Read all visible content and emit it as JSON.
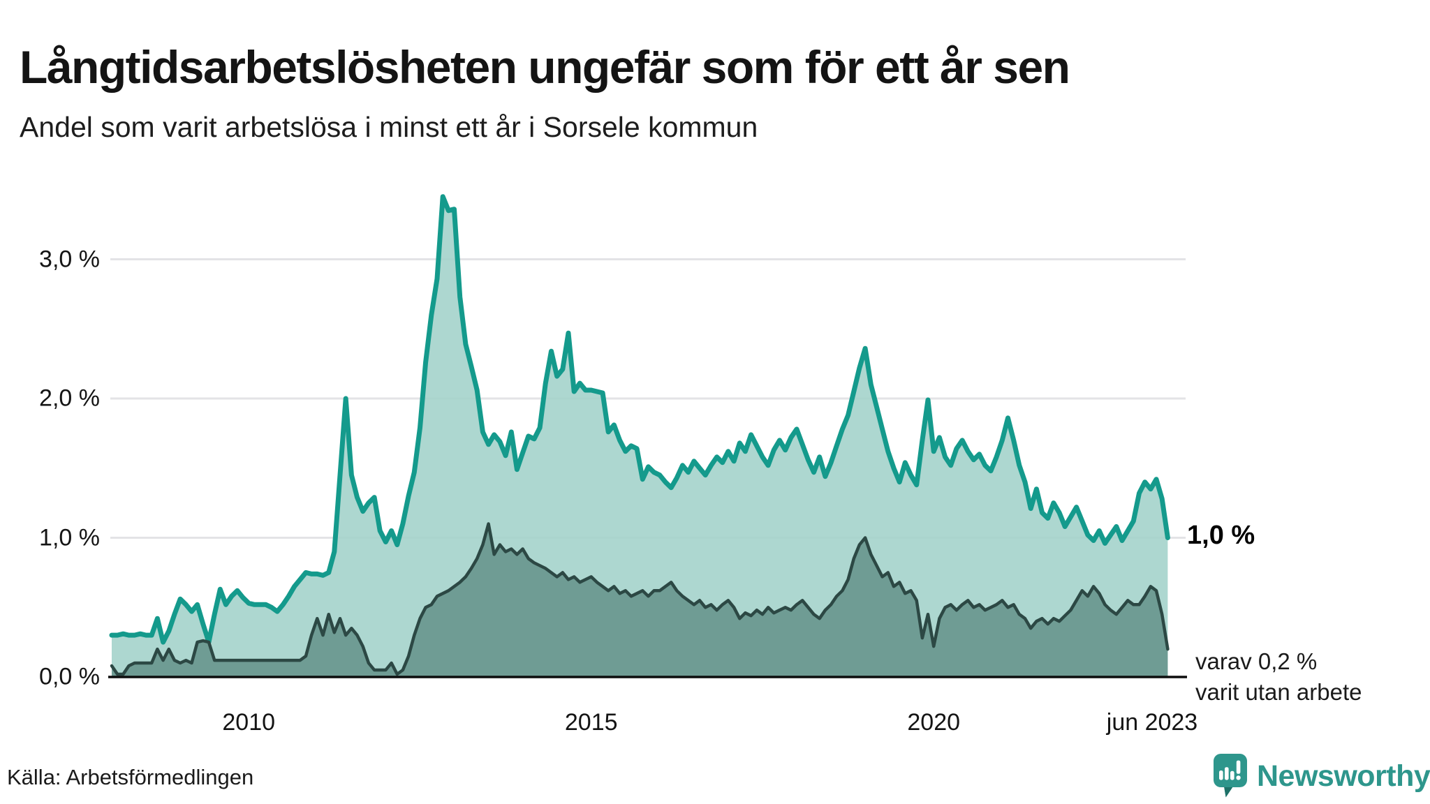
{
  "header": {
    "title": "Långtidsarbetslösheten ungefär som för ett år sen",
    "subtitle": "Andel som varit arbetslösa i minst ett år i Sorsele kommun"
  },
  "chart_data": {
    "type": "area",
    "title": "Långtidsarbetslösheten ungefär som för ett år sen",
    "subtitle": "Andel som varit arbetslösa i minst ett år i Sorsele kommun",
    "frequency": "monthly",
    "x_start": "2008-01",
    "x_end": "2023-06",
    "xlim": [
      2008.0,
      2023.5
    ],
    "ylim": [
      0,
      3.55
    ],
    "grid": "horizontal",
    "legend_position": "none",
    "yticks": [
      {
        "value": 0,
        "label": "0,0 %"
      },
      {
        "value": 1,
        "label": "1,0 %"
      },
      {
        "value": 2,
        "label": "2,0 %"
      },
      {
        "value": 3,
        "label": "3,0 %"
      }
    ],
    "xticks": [
      {
        "value": 2010,
        "label": "2010"
      },
      {
        "value": 2015,
        "label": "2015"
      },
      {
        "value": 2020,
        "label": "2020"
      },
      {
        "value": 2023.417,
        "label": "jun 2023"
      }
    ],
    "series": [
      {
        "id": "total-minst-ett-ar",
        "color": "#149a8c",
        "fill": "#a2d2ca",
        "end_value": 1.0,
        "end_label": "1,0 %",
        "values": [
          0.3,
          0.3,
          0.31,
          0.3,
          0.3,
          0.31,
          0.3,
          0.3,
          0.42,
          0.25,
          0.33,
          0.45,
          0.56,
          0.52,
          0.47,
          0.52,
          0.38,
          0.25,
          0.45,
          0.63,
          0.52,
          0.58,
          0.62,
          0.57,
          0.53,
          0.52,
          0.52,
          0.52,
          0.5,
          0.47,
          0.52,
          0.58,
          0.65,
          0.7,
          0.75,
          0.74,
          0.74,
          0.73,
          0.75,
          0.9,
          1.45,
          2.0,
          1.45,
          1.29,
          1.19,
          1.25,
          1.29,
          1.05,
          0.97,
          1.05,
          0.95,
          1.1,
          1.3,
          1.47,
          1.79,
          2.26,
          2.6,
          2.86,
          3.45,
          3.35,
          3.36,
          2.73,
          2.39,
          2.23,
          2.06,
          1.76,
          1.67,
          1.74,
          1.69,
          1.59,
          1.76,
          1.49,
          1.61,
          1.73,
          1.71,
          1.79,
          2.11,
          2.34,
          2.16,
          2.21,
          2.47,
          2.05,
          2.11,
          2.06,
          2.06,
          2.05,
          2.04,
          1.76,
          1.81,
          1.7,
          1.62,
          1.66,
          1.64,
          1.42,
          1.51,
          1.47,
          1.45,
          1.4,
          1.36,
          1.43,
          1.52,
          1.47,
          1.55,
          1.5,
          1.45,
          1.52,
          1.58,
          1.54,
          1.62,
          1.55,
          1.68,
          1.62,
          1.74,
          1.66,
          1.58,
          1.52,
          1.63,
          1.7,
          1.63,
          1.72,
          1.78,
          1.67,
          1.56,
          1.47,
          1.58,
          1.44,
          1.54,
          1.66,
          1.78,
          1.88,
          2.05,
          2.22,
          2.36,
          2.1,
          1.94,
          1.78,
          1.62,
          1.5,
          1.4,
          1.54,
          1.45,
          1.38,
          1.7,
          1.99,
          1.62,
          1.72,
          1.58,
          1.52,
          1.64,
          1.7,
          1.62,
          1.56,
          1.6,
          1.52,
          1.48,
          1.58,
          1.7,
          1.86,
          1.7,
          1.52,
          1.4,
          1.21,
          1.35,
          1.18,
          1.14,
          1.25,
          1.18,
          1.08,
          1.15,
          1.22,
          1.12,
          1.02,
          0.98,
          1.05,
          0.96,
          1.02,
          1.08,
          0.98,
          1.05,
          1.12,
          1.32,
          1.4,
          1.35,
          1.42,
          1.28,
          1.0
        ]
      },
      {
        "id": "varav-utan-arbete",
        "color": "#2c4844",
        "fill": "#6f9c94",
        "end_value": 0.2,
        "end_label_lines": [
          "varav 0,2 %",
          "varit utan arbete"
        ],
        "values": [
          0.08,
          0.02,
          0.02,
          0.08,
          0.1,
          0.1,
          0.1,
          0.1,
          0.2,
          0.12,
          0.2,
          0.12,
          0.1,
          0.12,
          0.1,
          0.25,
          0.26,
          0.25,
          0.12,
          0.12,
          0.12,
          0.12,
          0.12,
          0.12,
          0.12,
          0.12,
          0.12,
          0.12,
          0.12,
          0.12,
          0.12,
          0.12,
          0.12,
          0.12,
          0.15,
          0.3,
          0.42,
          0.3,
          0.45,
          0.32,
          0.42,
          0.3,
          0.35,
          0.3,
          0.22,
          0.1,
          0.05,
          0.05,
          0.05,
          0.1,
          0.02,
          0.05,
          0.15,
          0.3,
          0.42,
          0.5,
          0.52,
          0.58,
          0.6,
          0.62,
          0.65,
          0.68,
          0.72,
          0.78,
          0.85,
          0.95,
          1.1,
          0.88,
          0.95,
          0.9,
          0.92,
          0.88,
          0.92,
          0.85,
          0.82,
          0.8,
          0.78,
          0.75,
          0.72,
          0.75,
          0.7,
          0.72,
          0.68,
          0.7,
          0.72,
          0.68,
          0.65,
          0.62,
          0.65,
          0.6,
          0.62,
          0.58,
          0.6,
          0.62,
          0.58,
          0.62,
          0.62,
          0.65,
          0.68,
          0.62,
          0.58,
          0.55,
          0.52,
          0.55,
          0.5,
          0.52,
          0.48,
          0.52,
          0.55,
          0.5,
          0.42,
          0.46,
          0.44,
          0.48,
          0.45,
          0.5,
          0.46,
          0.48,
          0.5,
          0.48,
          0.52,
          0.55,
          0.5,
          0.45,
          0.42,
          0.48,
          0.52,
          0.58,
          0.62,
          0.7,
          0.85,
          0.95,
          1.0,
          0.88,
          0.8,
          0.72,
          0.75,
          0.65,
          0.68,
          0.6,
          0.62,
          0.55,
          0.28,
          0.45,
          0.22,
          0.42,
          0.5,
          0.52,
          0.48,
          0.52,
          0.55,
          0.5,
          0.52,
          0.48,
          0.5,
          0.52,
          0.55,
          0.5,
          0.52,
          0.45,
          0.42,
          0.35,
          0.4,
          0.42,
          0.38,
          0.42,
          0.4,
          0.44,
          0.48,
          0.55,
          0.62,
          0.58,
          0.65,
          0.6,
          0.52,
          0.48,
          0.45,
          0.5,
          0.55,
          0.52,
          0.52,
          0.58,
          0.65,
          0.62,
          0.45,
          0.2
        ]
      }
    ]
  },
  "annotations": {
    "total_end_label": "1,0 %",
    "sub_end_line1": "varav 0,2 %",
    "sub_end_line2": "varit utan arbete"
  },
  "footer": {
    "source": "Källa: Arbetsförmedlingen",
    "brand": "Newsworthy"
  },
  "colors": {
    "total_line": "#149a8c",
    "total_fill": "#a2d2ca",
    "sub_line": "#2c4844",
    "sub_fill": "#6f9c94",
    "gridline": "#e3e3e6",
    "axis_line": "#0d0d0d",
    "brand_teal": "#2e968c",
    "brand_teal_dark": "#1e7168"
  }
}
